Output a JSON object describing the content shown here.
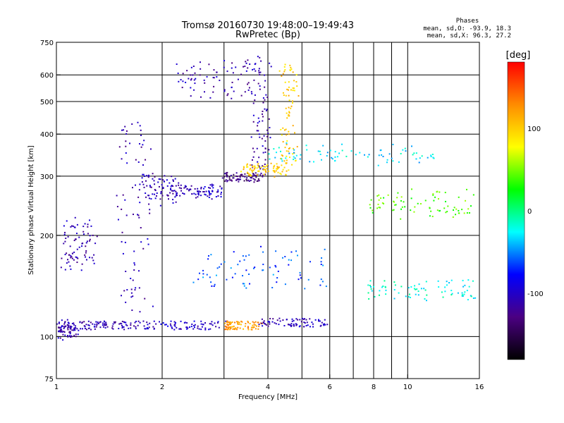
{
  "chart_data": {
    "type": "scatter",
    "title": "Tromsø 20160730 19:48:00–19:49:43",
    "subtitle": "RwPretec (Bp)",
    "xlabel": "Frequency [MHz]",
    "ylabel": "Stationary phase Virtual Height [km]",
    "x_scale": "log",
    "y_scale": "log",
    "xlim": [
      1,
      16
    ],
    "ylim": [
      75,
      750
    ],
    "x_ticks": [
      1,
      2,
      4,
      6,
      8,
      10,
      16
    ],
    "x_tick_labels": [
      "1",
      "2",
      "4",
      "6",
      "8",
      "10",
      "16"
    ],
    "x_minor_ticks": [
      3,
      5,
      7,
      9
    ],
    "y_ticks": [
      75,
      100,
      200,
      300,
      400,
      500,
      600,
      750
    ],
    "y_tick_labels": [
      "75",
      "100",
      "200",
      "300",
      "400",
      "500",
      "600",
      "750"
    ],
    "grid": true,
    "stats": {
      "heading": "Phases",
      "line_o": "mean, sd,O: -93.9, 18.3",
      "line_x": "mean, sd,X:  96.3, 27.2"
    },
    "colorbar": {
      "label": "[deg]",
      "range": [
        -180,
        180
      ],
      "ticks": [
        100,
        0,
        -100
      ],
      "tick_labels": [
        "100",
        "0",
        "-100"
      ],
      "colors": [
        "#000000",
        "#4b0082",
        "#0000ff",
        "#00ffff",
        "#00ff00",
        "#ffff00",
        "#ff8c00",
        "#ff0000"
      ]
    },
    "series": [
      {
        "x": [
          1.0,
          1.15
        ],
        "y": [
          100,
          110
        ],
        "phase": -110
      },
      {
        "x": [
          1.15,
          1.7
        ],
        "y": [
          108,
          108
        ],
        "phase": -110
      },
      {
        "x": [
          1.7,
          3.0
        ],
        "y": [
          108,
          108
        ],
        "phase": -100
      },
      {
        "x": [
          3.0,
          3.8
        ],
        "y": [
          108,
          108
        ],
        "phase": 120
      },
      {
        "x": [
          3.8,
          5.8
        ],
        "y": [
          110,
          110
        ],
        "phase": -105
      },
      {
        "x": [
          1.5,
          1.85
        ],
        "y": [
          120,
          430
        ],
        "phase": -110
      },
      {
        "x": [
          1.75,
          2.2
        ],
        "y": [
          250,
          300
        ],
        "phase": -110
      },
      {
        "x": [
          2.2,
          3.0
        ],
        "y": [
          260,
          280
        ],
        "phase": -100
      },
      {
        "x": [
          3.0,
          3.8
        ],
        "y": [
          295,
          300
        ],
        "phase": -130
      },
      {
        "x": [
          3.6,
          4.05
        ],
        "y": [
          300,
          670
        ],
        "phase": -110
      },
      {
        "x": [
          2.2,
          3.8
        ],
        "y": [
          520,
          660
        ],
        "phase": -110
      },
      {
        "x": [
          3.4,
          4.6
        ],
        "y": [
          305,
          320
        ],
        "phase": 100
      },
      {
        "x": [
          4.4,
          4.8
        ],
        "y": [
          320,
          640
        ],
        "phase": 100
      },
      {
        "x": [
          2.5,
          6.0
        ],
        "y": [
          140,
          180
        ],
        "phase": -60
      },
      {
        "x": [
          7.5,
          15.5
        ],
        "y": [
          130,
          145
        ],
        "phase": -20
      },
      {
        "x": [
          7.5,
          15.5
        ],
        "y": [
          230,
          270
        ],
        "phase": 40
      },
      {
        "x": [
          1.05,
          1.3
        ],
        "y": [
          160,
          220
        ],
        "phase": -110
      },
      {
        "x": [
          4.0,
          12.0
        ],
        "y": [
          330,
          370
        ],
        "phase": -30
      }
    ]
  }
}
